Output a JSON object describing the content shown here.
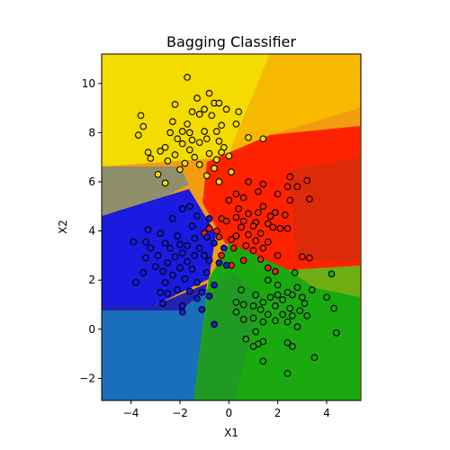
{
  "chart_data": {
    "type": "scatter",
    "title": "Bagging Classifier",
    "xlabel": "X1",
    "ylabel": "X2",
    "xlim": [
      -5.2,
      5.4
    ],
    "ylim": [
      -2.9,
      11.2
    ],
    "xticks": [
      -4,
      -2,
      0,
      2,
      4
    ],
    "yticks": [
      -2,
      0,
      2,
      4,
      6,
      8,
      10
    ],
    "grid": false,
    "background": "decision regions",
    "class_colors": {
      "yellow": "#f5dc00",
      "red": "#ff2200",
      "blue": "#1a1ae0",
      "green": "#1aaa10"
    },
    "series": [
      {
        "color": "#f5dc00",
        "points": [
          [
            -1.7,
            10.25
          ],
          [
            -1.3,
            9.4
          ],
          [
            -0.8,
            9.6
          ],
          [
            -2.2,
            9.15
          ],
          [
            -1.0,
            8.95
          ],
          [
            -0.6,
            9.2
          ],
          [
            -0.4,
            9.2
          ],
          [
            -0.1,
            8.95
          ],
          [
            0.4,
            8.85
          ],
          [
            -1.5,
            8.85
          ],
          [
            -1.2,
            8.75
          ],
          [
            -0.7,
            8.7
          ],
          [
            -3.6,
            8.7
          ],
          [
            -2.3,
            8.45
          ],
          [
            -1.7,
            8.35
          ],
          [
            0.3,
            8.35
          ],
          [
            -0.3,
            8.3
          ],
          [
            -3.5,
            8.25
          ],
          [
            -1.9,
            8.05
          ],
          [
            -1.6,
            8.0
          ],
          [
            -2.4,
            8.0
          ],
          [
            -1.0,
            8.05
          ],
          [
            -0.5,
            8.05
          ],
          [
            -3.7,
            7.9
          ],
          [
            -2.1,
            7.75
          ],
          [
            -1.5,
            7.7
          ],
          [
            -0.9,
            7.75
          ],
          [
            -0.4,
            7.65
          ],
          [
            0.8,
            7.8
          ],
          [
            1.4,
            7.75
          ],
          [
            -1.9,
            7.55
          ],
          [
            -1.2,
            7.6
          ],
          [
            -2.6,
            7.4
          ],
          [
            -1.6,
            7.3
          ],
          [
            -0.2,
            7.4
          ],
          [
            -3.3,
            7.2
          ],
          [
            -2.8,
            7.25
          ],
          [
            -2.2,
            7.1
          ],
          [
            -1.4,
            7.0
          ],
          [
            -0.8,
            7.15
          ],
          [
            -3.2,
            6.95
          ],
          [
            -2.5,
            6.85
          ],
          [
            -1.8,
            6.75
          ],
          [
            -1.2,
            6.7
          ],
          [
            -0.6,
            6.55
          ],
          [
            -0.3,
            7.2
          ],
          [
            -0.5,
            6.9
          ],
          [
            -2.0,
            6.5
          ],
          [
            0.1,
            6.4
          ],
          [
            0.0,
            7.05
          ],
          [
            -0.9,
            6.25
          ],
          [
            -2.6,
            5.95
          ],
          [
            -2.9,
            6.3
          ],
          [
            -0.4,
            6.0
          ]
        ]
      },
      {
        "color": "#ff2200",
        "points": [
          [
            2.5,
            6.2
          ],
          [
            3.2,
            6.05
          ],
          [
            0.8,
            6.0
          ],
          [
            1.4,
            5.9
          ],
          [
            2.4,
            5.8
          ],
          [
            2.8,
            5.8
          ],
          [
            1.2,
            5.6
          ],
          [
            2.0,
            5.5
          ],
          [
            0.3,
            5.5
          ],
          [
            0.6,
            5.35
          ],
          [
            3.3,
            5.3
          ],
          [
            0.0,
            5.25
          ],
          [
            2.5,
            5.25
          ],
          [
            1.4,
            5.0
          ],
          [
            0.4,
            4.9
          ],
          [
            1.2,
            4.75
          ],
          [
            0.8,
            4.7
          ],
          [
            1.9,
            4.75
          ],
          [
            1.7,
            4.6
          ],
          [
            2.3,
            4.65
          ],
          [
            0.3,
            4.55
          ],
          [
            -0.3,
            4.5
          ],
          [
            0.6,
            4.4
          ],
          [
            1.1,
            4.35
          ],
          [
            1.6,
            4.3
          ],
          [
            1.0,
            4.2
          ],
          [
            -0.1,
            4.4
          ],
          [
            0.5,
            4.15
          ],
          [
            1.8,
            4.15
          ],
          [
            2.1,
            4.1
          ],
          [
            2.4,
            4.1
          ],
          [
            1.3,
            3.9
          ],
          [
            0.8,
            3.85
          ],
          [
            0.3,
            3.8
          ],
          [
            -0.4,
            3.75
          ],
          [
            0.1,
            3.65
          ],
          [
            1.1,
            3.6
          ],
          [
            1.6,
            3.55
          ],
          [
            0.7,
            3.4
          ],
          [
            0.2,
            3.3
          ],
          [
            1.4,
            3.3
          ],
          [
            1.0,
            3.2
          ],
          [
            2.0,
            3.0
          ],
          [
            3.0,
            2.95
          ],
          [
            3.3,
            2.9
          ],
          [
            1.3,
            2.85
          ],
          [
            0.6,
            2.8
          ],
          [
            1.6,
            2.5
          ],
          [
            1.9,
            2.35
          ],
          [
            -0.3,
            3.0
          ],
          [
            0.1,
            2.6
          ],
          [
            -0.5,
            4.0
          ],
          [
            -0.8,
            4.1
          ],
          [
            -1.0,
            3.9
          ]
        ]
      },
      {
        "color": "#1a1ae0",
        "points": [
          [
            -1.6,
            5.0
          ],
          [
            -1.9,
            4.9
          ],
          [
            -1.3,
            4.6
          ],
          [
            -2.3,
            4.5
          ],
          [
            -0.8,
            4.5
          ],
          [
            -1.5,
            4.2
          ],
          [
            -3.3,
            4.05
          ],
          [
            -2.8,
            3.9
          ],
          [
            -2.1,
            3.8
          ],
          [
            -0.9,
            3.75
          ],
          [
            -1.4,
            3.7
          ],
          [
            -3.9,
            3.55
          ],
          [
            -3.4,
            3.55
          ],
          [
            -2.6,
            3.5
          ],
          [
            -2.0,
            3.45
          ],
          [
            -1.7,
            3.4
          ],
          [
            -0.6,
            3.5
          ],
          [
            -3.2,
            3.3
          ],
          [
            -2.4,
            3.3
          ],
          [
            -1.2,
            3.3
          ],
          [
            -0.2,
            3.3
          ],
          [
            -1.9,
            3.1
          ],
          [
            -1.4,
            3.0
          ],
          [
            -2.9,
            3.0
          ],
          [
            -2.2,
            2.95
          ],
          [
            -3.4,
            2.9
          ],
          [
            -0.8,
            2.8
          ],
          [
            -1.0,
            3.0
          ],
          [
            -1.7,
            2.75
          ],
          [
            -2.5,
            2.7
          ],
          [
            -3.0,
            2.55
          ],
          [
            -0.4,
            2.7
          ],
          [
            -0.1,
            2.6
          ],
          [
            -2.0,
            2.5
          ],
          [
            -1.5,
            2.45
          ],
          [
            -3.5,
            2.3
          ],
          [
            -2.7,
            2.35
          ],
          [
            -0.9,
            2.3
          ],
          [
            -2.3,
            2.2
          ],
          [
            -1.8,
            2.05
          ],
          [
            -1.3,
            1.9
          ],
          [
            -2.6,
            1.9
          ],
          [
            -0.6,
            1.8
          ],
          [
            -3.8,
            1.9
          ],
          [
            -2.1,
            1.6
          ],
          [
            -1.6,
            1.55
          ],
          [
            -2.8,
            1.5
          ],
          [
            -1.1,
            1.5
          ],
          [
            -2.5,
            1.45
          ],
          [
            -0.8,
            1.35
          ],
          [
            -1.9,
            0.95
          ],
          [
            -2.7,
            1.05
          ],
          [
            -1.1,
            0.8
          ],
          [
            -1.9,
            0.7
          ],
          [
            -0.6,
            0.2
          ],
          [
            -1.3,
            1.25
          ]
        ]
      },
      {
        "color": "#1aaa10",
        "points": [
          [
            2.7,
            2.3
          ],
          [
            4.2,
            2.25
          ],
          [
            2.0,
            1.8
          ],
          [
            2.8,
            1.7
          ],
          [
            3.4,
            1.6
          ],
          [
            2.4,
            1.5
          ],
          [
            0.5,
            1.6
          ],
          [
            1.1,
            1.4
          ],
          [
            1.7,
            1.3
          ],
          [
            2.0,
            1.4
          ],
          [
            2.6,
            1.4
          ],
          [
            3.0,
            1.3
          ],
          [
            4.0,
            1.3
          ],
          [
            1.4,
            1.1
          ],
          [
            2.2,
            1.2
          ],
          [
            3.1,
            1.05
          ],
          [
            0.6,
            1.0
          ],
          [
            1.0,
            0.95
          ],
          [
            1.9,
            0.95
          ],
          [
            2.5,
            0.85
          ],
          [
            4.3,
            0.85
          ],
          [
            1.3,
            0.8
          ],
          [
            2.9,
            0.75
          ],
          [
            0.3,
            0.7
          ],
          [
            1.6,
            0.6
          ],
          [
            2.2,
            0.6
          ],
          [
            2.6,
            0.55
          ],
          [
            3.2,
            0.55
          ],
          [
            1.0,
            0.45
          ],
          [
            0.6,
            0.4
          ],
          [
            1.9,
            0.35
          ],
          [
            2.4,
            0.3
          ],
          [
            1.4,
            0.3
          ],
          [
            2.8,
            0.1
          ],
          [
            1.1,
            -0.1
          ],
          [
            4.4,
            -0.15
          ],
          [
            0.7,
            -0.4
          ],
          [
            1.4,
            -0.5
          ],
          [
            1.2,
            -0.6
          ],
          [
            2.4,
            -0.55
          ],
          [
            1.0,
            -0.7
          ],
          [
            2.6,
            -0.7
          ],
          [
            3.5,
            -1.15
          ],
          [
            1.4,
            -1.3
          ],
          [
            2.4,
            -1.8
          ],
          [
            0.3,
            1.1
          ],
          [
            1.6,
            2.0
          ]
        ]
      }
    ]
  }
}
